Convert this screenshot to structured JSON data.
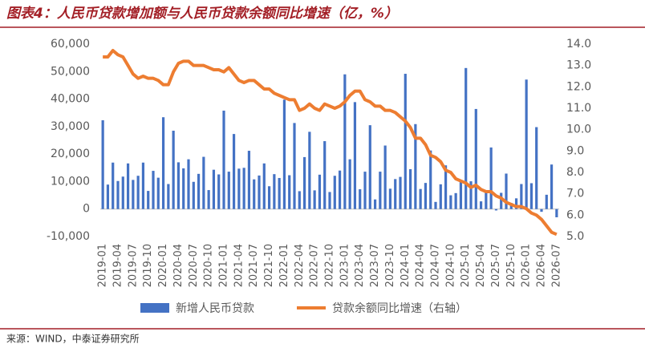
{
  "chart_data": {
    "type": "bar-line",
    "title": "图表4：人民币贷款增加额与人民币贷款余额同比增速（亿，%）",
    "source": "来源：WIND，中泰证券研究所",
    "categories": [
      "2019-01",
      null,
      null,
      "2019-04",
      null,
      null,
      "2019-07",
      null,
      null,
      "2019-10",
      null,
      null,
      "2020-01",
      null,
      null,
      "2020-04",
      null,
      null,
      "2020-07",
      null,
      null,
      "2020-10",
      null,
      null,
      "2021-01",
      null,
      null,
      "2021-04",
      null,
      null,
      "2021-07",
      null,
      null,
      "2021-10",
      null,
      null,
      "2022-01",
      null,
      null,
      "2022-04",
      null,
      null,
      "2022-07",
      null,
      null,
      "2022-10",
      null,
      null,
      "2023-01",
      null,
      null,
      "2023-04",
      null,
      null,
      "2023-07",
      null,
      null,
      "2023-10",
      null,
      null,
      "2024-01",
      null,
      null,
      "2024-04",
      null,
      null,
      "2024-07",
      null,
      null,
      "2024-10",
      null,
      null,
      "2025-01",
      null,
      null,
      "2025-04",
      null,
      null,
      "2025-07",
      null,
      null,
      "2025-10",
      null,
      null,
      "2026-01",
      null,
      null,
      "2026-04",
      null,
      null,
      "2026-07"
    ],
    "series": [
      {
        "name": "新增人民币贷款",
        "color": "#4472c4",
        "axis": "y",
        "values": [
          32300,
          8900,
          16900,
          10200,
          11800,
          16600,
          10600,
          12100,
          16900,
          6600,
          13900,
          11400,
          33400,
          9100,
          28500,
          17000,
          14800,
          18100,
          9900,
          12800,
          19000,
          6900,
          14300,
          12600,
          35800,
          13600,
          27300,
          14700,
          15000,
          21200,
          10800,
          12200,
          16600,
          8300,
          12700,
          11300,
          39800,
          12300,
          31300,
          6500,
          18900,
          28100,
          6800,
          12500,
          24700,
          6200,
          12100,
          14000,
          49000,
          18100,
          38900,
          7200,
          13600,
          30500,
          3500,
          13600,
          23100,
          7400,
          10900,
          11700,
          49200,
          14500,
          30900,
          7300,
          9500,
          21300,
          2600,
          9000,
          15900,
          5000,
          5800,
          9900,
          51300,
          10100,
          36400,
          2800,
          6200,
          22400,
          -500,
          5900,
          12900,
          2200,
          3900,
          9100,
          47100,
          9400,
          29800,
          -1000,
          5200,
          16200,
          -3000
        ]
      },
      {
        "name": "贷款余额同比增速（右轴）",
        "color": "#ed7d31",
        "axis": "y2",
        "values": [
          13.4,
          13.4,
          13.7,
          13.5,
          13.4,
          13.0,
          12.6,
          12.4,
          12.5,
          12.4,
          12.4,
          12.3,
          12.1,
          12.1,
          12.7,
          13.1,
          13.2,
          13.2,
          13.0,
          13.0,
          13.0,
          12.9,
          12.8,
          12.8,
          12.7,
          12.9,
          12.6,
          12.3,
          12.2,
          12.3,
          12.3,
          12.1,
          11.9,
          11.9,
          11.7,
          11.6,
          11.5,
          11.4,
          11.4,
          10.9,
          11.0,
          11.2,
          11.0,
          10.9,
          11.2,
          11.1,
          11.0,
          11.1,
          11.3,
          11.6,
          11.8,
          11.8,
          11.4,
          11.3,
          11.1,
          11.1,
          10.9,
          10.9,
          10.8,
          10.6,
          10.4,
          10.1,
          9.6,
          9.6,
          9.3,
          8.8,
          8.7,
          8.5,
          8.1,
          8.0,
          7.7,
          7.6,
          7.5,
          7.3,
          7.4,
          7.2,
          7.1,
          7.1,
          6.9,
          6.8,
          6.6,
          6.5,
          6.4,
          6.4,
          6.3,
          6.1,
          6.0,
          5.8,
          5.5,
          5.2,
          5.1
        ]
      }
    ],
    "ylim": [
      -10000,
      60000
    ],
    "yticks": [
      {
        "value": -10000,
        "label": "-10,000"
      },
      0,
      {
        "value": 10000,
        "label": "10,000"
      },
      {
        "value": 20000,
        "label": "20,000"
      },
      {
        "value": 30000,
        "label": "30,000"
      },
      {
        "value": 40000,
        "label": "40,000"
      },
      {
        "value": 50000,
        "label": "50,000"
      },
      {
        "value": 60000,
        "label": "60,000"
      }
    ],
    "y2lim": [
      5,
      14
    ],
    "y2ticks": [
      {
        "value": 5,
        "label": "5.0"
      },
      {
        "value": 6,
        "label": "6.0"
      },
      {
        "value": 7,
        "label": "7.0"
      },
      {
        "value": 8,
        "label": "8.0"
      },
      {
        "value": 9,
        "label": "9.0"
      },
      {
        "value": 10,
        "label": "10.0"
      },
      {
        "value": 11,
        "label": "11.0"
      },
      {
        "value": 12,
        "label": "12.0"
      },
      {
        "value": 13,
        "label": "13.0"
      },
      {
        "value": 14,
        "label": "14.0"
      }
    ],
    "grid": false
  }
}
